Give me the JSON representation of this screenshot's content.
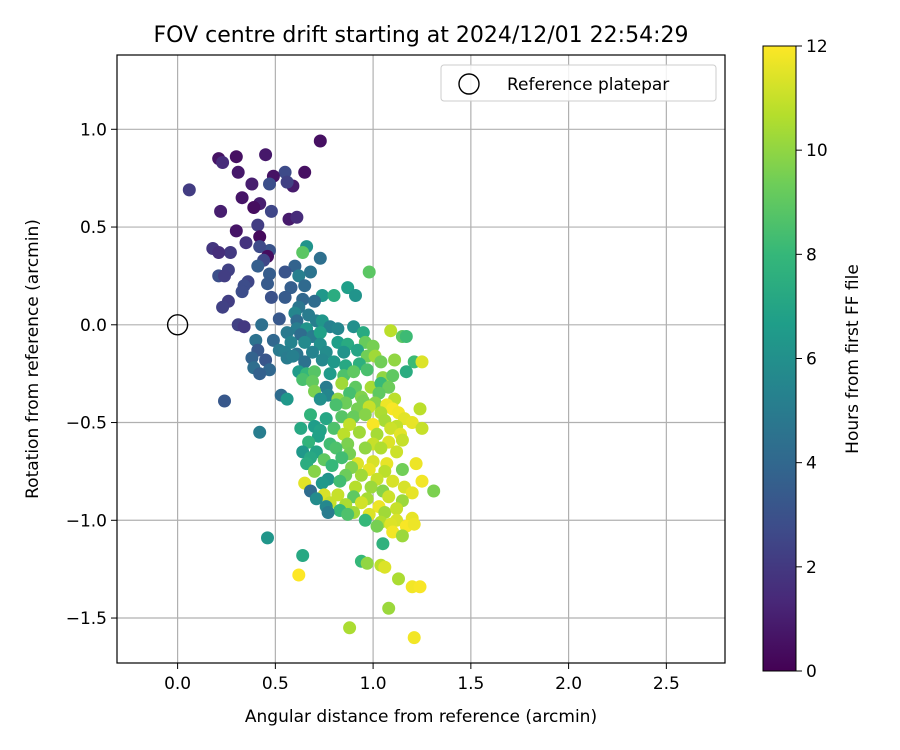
{
  "chart_data": {
    "type": "scatter",
    "title": "FOV centre drift starting at 2024/12/01 22:54:29",
    "xlabel": "Angular distance from reference (arcmin)",
    "ylabel": "Rotation from reference (arcmin)",
    "xlim": [
      -0.31,
      2.8
    ],
    "ylim": [
      -1.73,
      1.38
    ],
    "xticks": [
      0.0,
      0.5,
      1.0,
      1.5,
      2.0,
      2.5
    ],
    "xtick_labels": [
      "0.0",
      "0.5",
      "1.0",
      "1.5",
      "2.0",
      "2.5"
    ],
    "yticks": [
      -1.5,
      -1.0,
      -0.5,
      0.0,
      0.5,
      1.0
    ],
    "ytick_labels": [
      "−1.5",
      "−1.0",
      "−0.5",
      "0.0",
      "0.5",
      "1.0"
    ],
    "grid": true,
    "legend": {
      "placement": "top-right",
      "entries": [
        "Reference platepar"
      ]
    },
    "reference_point": {
      "x": 0.0,
      "y": 0.0
    },
    "colorbar": {
      "label": "Hours from first FF file",
      "range": [
        0,
        12
      ],
      "ticks": [
        0,
        2,
        4,
        6,
        8,
        10,
        12
      ],
      "colormap": "viridis"
    },
    "points": [
      [
        0.73,
        0.94,
        0.5
      ],
      [
        0.21,
        0.85,
        0.6
      ],
      [
        0.45,
        0.87,
        0.8
      ],
      [
        0.3,
        0.86,
        0.5
      ],
      [
        0.23,
        0.83,
        1.5
      ],
      [
        0.55,
        0.78,
        2.7
      ],
      [
        0.65,
        0.78,
        0.5
      ],
      [
        0.31,
        0.78,
        0.8
      ],
      [
        0.49,
        0.76,
        0.6
      ],
      [
        0.38,
        0.72,
        1.0
      ],
      [
        0.59,
        0.71,
        0.9
      ],
      [
        0.47,
        0.72,
        2.9
      ],
      [
        0.56,
        0.73,
        2.3
      ],
      [
        0.06,
        0.69,
        2.1
      ],
      [
        0.33,
        0.65,
        0.7
      ],
      [
        0.42,
        0.62,
        1.0
      ],
      [
        0.39,
        0.6,
        0.4
      ],
      [
        0.48,
        0.58,
        2.5
      ],
      [
        0.22,
        0.58,
        1.0
      ],
      [
        0.57,
        0.54,
        0.9
      ],
      [
        0.61,
        0.55,
        1.5
      ],
      [
        0.41,
        0.51,
        2.2
      ],
      [
        0.3,
        0.48,
        0.7
      ],
      [
        0.42,
        0.45,
        0.3
      ],
      [
        0.35,
        0.42,
        1.8
      ],
      [
        0.47,
        0.38,
        3.1
      ],
      [
        0.42,
        0.4,
        2.7
      ],
      [
        0.18,
        0.39,
        1.9
      ],
      [
        0.27,
        0.37,
        2.0
      ],
      [
        0.21,
        0.37,
        1.6
      ],
      [
        0.66,
        0.4,
        6.2
      ],
      [
        0.64,
        0.37,
        8.9
      ],
      [
        0.46,
        0.35,
        0.4
      ],
      [
        0.73,
        0.34,
        4.4
      ],
      [
        0.44,
        0.33,
        2.6
      ],
      [
        0.41,
        0.3,
        3.6
      ],
      [
        0.6,
        0.3,
        3.8
      ],
      [
        0.55,
        0.27,
        3.1
      ],
      [
        0.68,
        0.27,
        4.6
      ],
      [
        0.26,
        0.28,
        2.3
      ],
      [
        0.62,
        0.25,
        5.2
      ],
      [
        0.47,
        0.26,
        3.5
      ],
      [
        0.98,
        0.27,
        8.9
      ],
      [
        0.21,
        0.25,
        2.9
      ],
      [
        0.24,
        0.25,
        2.2
      ],
      [
        0.36,
        0.22,
        2.5
      ],
      [
        0.46,
        0.21,
        3.4
      ],
      [
        0.34,
        0.2,
        2.8
      ],
      [
        0.58,
        0.19,
        3.6
      ],
      [
        0.65,
        0.2,
        4.1
      ],
      [
        0.33,
        0.17,
        2.8
      ],
      [
        0.48,
        0.14,
        3.0
      ],
      [
        0.55,
        0.14,
        3.4
      ],
      [
        0.64,
        0.13,
        4.0
      ],
      [
        0.87,
        0.19,
        6.7
      ],
      [
        0.74,
        0.15,
        6.4
      ],
      [
        0.91,
        0.15,
        6.2
      ],
      [
        0.8,
        0.15,
        7.4
      ],
      [
        0.26,
        0.12,
        2.2
      ],
      [
        0.7,
        0.12,
        4.2
      ],
      [
        0.23,
        0.09,
        2.3
      ],
      [
        0.62,
        0.09,
        4.7
      ],
      [
        0.67,
        0.05,
        5.0
      ],
      [
        0.6,
        0.06,
        5.5
      ],
      [
        0.61,
        0.02,
        4.2
      ],
      [
        0.71,
        0.02,
        5.2
      ],
      [
        0.52,
        0.03,
        3.3
      ],
      [
        0.74,
        0.02,
        6.3
      ],
      [
        0.31,
        0.0,
        2.3
      ],
      [
        0.34,
        -0.01,
        2.0
      ],
      [
        0.43,
        0.0,
        4.4
      ],
      [
        0.61,
        -0.02,
        5.1
      ],
      [
        0.66,
        -0.02,
        6.2
      ],
      [
        0.78,
        -0.01,
        5.3
      ],
      [
        0.56,
        -0.04,
        4.9
      ],
      [
        0.63,
        -0.05,
        4.2
      ],
      [
        0.69,
        -0.06,
        5.0
      ],
      [
        0.73,
        -0.04,
        6.8
      ],
      [
        0.82,
        -0.02,
        5.5
      ],
      [
        0.9,
        -0.01,
        6.0
      ],
      [
        0.95,
        -0.04,
        7.3
      ],
      [
        1.09,
        -0.03,
        10.8
      ],
      [
        1.15,
        -0.06,
        8.9
      ],
      [
        1.17,
        -0.06,
        8.2
      ],
      [
        0.4,
        -0.08,
        4.5
      ],
      [
        0.49,
        -0.08,
        4.0
      ],
      [
        0.58,
        -0.09,
        5.4
      ],
      [
        0.65,
        -0.09,
        5.7
      ],
      [
        0.73,
        -0.1,
        6.0
      ],
      [
        0.82,
        -0.09,
        6.7
      ],
      [
        0.87,
        -0.1,
        7.3
      ],
      [
        0.96,
        -0.09,
        9.2
      ],
      [
        1.0,
        -0.11,
        9.5
      ],
      [
        0.41,
        -0.13,
        3.3
      ],
      [
        0.52,
        -0.13,
        4.9
      ],
      [
        0.55,
        -0.14,
        5.2
      ],
      [
        0.61,
        -0.15,
        4.6
      ],
      [
        0.69,
        -0.14,
        5.4
      ],
      [
        0.76,
        -0.14,
        5.8
      ],
      [
        0.85,
        -0.14,
        6.2
      ],
      [
        0.92,
        -0.13,
        7.0
      ],
      [
        0.97,
        -0.16,
        9.4
      ],
      [
        1.01,
        -0.16,
        10.3
      ],
      [
        0.38,
        -0.17,
        3.8
      ],
      [
        0.45,
        -0.18,
        3.2
      ],
      [
        0.56,
        -0.17,
        5.0
      ],
      [
        0.59,
        -0.16,
        5.2
      ],
      [
        0.65,
        -0.19,
        4.5
      ],
      [
        0.74,
        -0.18,
        5.6
      ],
      [
        0.8,
        -0.19,
        6.4
      ],
      [
        0.86,
        -0.21,
        7.2
      ],
      [
        0.93,
        -0.2,
        7.6
      ],
      [
        1.04,
        -0.19,
        9.4
      ],
      [
        1.11,
        -0.18,
        10.0
      ],
      [
        1.21,
        -0.19,
        8.2
      ],
      [
        1.25,
        -0.19,
        11.4
      ],
      [
        0.39,
        -0.22,
        4.3
      ],
      [
        0.47,
        -0.23,
        4.0
      ],
      [
        0.62,
        -0.24,
        6.5
      ],
      [
        0.66,
        -0.25,
        8.0
      ],
      [
        0.7,
        -0.24,
        8.8
      ],
      [
        0.78,
        -0.25,
        6.5
      ],
      [
        0.85,
        -0.26,
        8.6
      ],
      [
        0.9,
        -0.24,
        9.0
      ],
      [
        0.97,
        -0.23,
        8.5
      ],
      [
        1.05,
        -0.27,
        10.0
      ],
      [
        1.1,
        -0.26,
        9.0
      ],
      [
        1.17,
        -0.24,
        7.4
      ],
      [
        0.42,
        -0.25,
        3.7
      ],
      [
        0.64,
        -0.28,
        8.5
      ],
      [
        0.69,
        -0.29,
        9.1
      ],
      [
        0.76,
        -0.32,
        5.0
      ],
      [
        0.84,
        -0.3,
        10.3
      ],
      [
        0.91,
        -0.32,
        9.0
      ],
      [
        0.99,
        -0.32,
        10.4
      ],
      [
        1.04,
        -0.3,
        8.1
      ],
      [
        1.08,
        -0.32,
        9.3
      ],
      [
        0.7,
        -0.34,
        9.6
      ],
      [
        0.77,
        -0.36,
        5.5
      ],
      [
        0.88,
        -0.35,
        8.4
      ],
      [
        0.94,
        -0.37,
        9.7
      ],
      [
        1.03,
        -0.35,
        9.0
      ],
      [
        1.11,
        -0.38,
        10.8
      ],
      [
        0.53,
        -0.36,
        4.2
      ],
      [
        0.56,
        -0.38,
        6.4
      ],
      [
        0.73,
        -0.38,
        6.0
      ],
      [
        0.82,
        -0.38,
        10.0
      ],
      [
        0.86,
        -0.4,
        9.3
      ],
      [
        0.95,
        -0.39,
        9.5
      ],
      [
        1.01,
        -0.4,
        9.8
      ],
      [
        1.07,
        -0.41,
        11.7
      ],
      [
        1.1,
        -0.43,
        11.9
      ],
      [
        0.24,
        -0.39,
        3.3
      ],
      [
        0.81,
        -0.41,
        8.5
      ],
      [
        0.92,
        -0.43,
        9.5
      ],
      [
        0.98,
        -0.42,
        11.0
      ],
      [
        1.04,
        -0.45,
        10.5
      ],
      [
        1.13,
        -0.45,
        11.8
      ],
      [
        1.16,
        -0.48,
        11.5
      ],
      [
        1.24,
        -0.43,
        10.8
      ],
      [
        0.68,
        -0.46,
        7.8
      ],
      [
        0.76,
        -0.48,
        7.1
      ],
      [
        0.84,
        -0.47,
        8.8
      ],
      [
        0.9,
        -0.47,
        9.2
      ],
      [
        0.96,
        -0.46,
        9.8
      ],
      [
        1.06,
        -0.49,
        10.4
      ],
      [
        1.12,
        -0.52,
        10.9
      ],
      [
        1.2,
        -0.5,
        11.6
      ],
      [
        0.63,
        -0.53,
        7.2
      ],
      [
        0.7,
        -0.52,
        6.6
      ],
      [
        0.73,
        -0.54,
        6.9
      ],
      [
        0.8,
        -0.53,
        8.6
      ],
      [
        0.88,
        -0.51,
        10.9
      ],
      [
        1.0,
        -0.51,
        11.9
      ],
      [
        1.09,
        -0.53,
        11.1
      ],
      [
        1.25,
        -0.53,
        11.0
      ],
      [
        0.42,
        -0.55,
        5.1
      ],
      [
        0.72,
        -0.57,
        6.8
      ],
      [
        0.85,
        -0.56,
        10.8
      ],
      [
        0.93,
        -0.55,
        10.3
      ],
      [
        1.02,
        -0.56,
        10.4
      ],
      [
        1.14,
        -0.56,
        11.5
      ],
      [
        0.67,
        -0.6,
        7.8
      ],
      [
        0.78,
        -0.61,
        8.3
      ],
      [
        0.87,
        -0.61,
        9.6
      ],
      [
        1.0,
        -0.61,
        11.0
      ],
      [
        1.08,
        -0.6,
        11.4
      ],
      [
        1.15,
        -0.59,
        11.0
      ],
      [
        0.64,
        -0.65,
        6.4
      ],
      [
        0.71,
        -0.65,
        7.0
      ],
      [
        0.81,
        -0.63,
        8.6
      ],
      [
        0.88,
        -0.66,
        9.5
      ],
      [
        0.96,
        -0.63,
        10.0
      ],
      [
        1.04,
        -0.63,
        10.6
      ],
      [
        1.12,
        -0.65,
        11.1
      ],
      [
        0.68,
        -0.68,
        7.2
      ],
      [
        0.75,
        -0.69,
        9.0
      ],
      [
        0.84,
        -0.68,
        8.3
      ],
      [
        0.92,
        -0.71,
        11.4
      ],
      [
        1.0,
        -0.7,
        11.3
      ],
      [
        1.07,
        -0.71,
        11.6
      ],
      [
        0.66,
        -0.71,
        7.4
      ],
      [
        0.79,
        -0.72,
        8.0
      ],
      [
        0.89,
        -0.73,
        9.7
      ],
      [
        0.98,
        -0.74,
        11.6
      ],
      [
        1.06,
        -0.75,
        10.8
      ],
      [
        1.15,
        -0.74,
        9.4
      ],
      [
        1.22,
        -0.71,
        11.7
      ],
      [
        0.7,
        -0.75,
        9.8
      ],
      [
        0.77,
        -0.79,
        6.2
      ],
      [
        0.86,
        -0.77,
        9.3
      ],
      [
        0.94,
        -0.77,
        10.3
      ],
      [
        1.02,
        -0.79,
        11.0
      ],
      [
        1.1,
        -0.8,
        11.3
      ],
      [
        0.65,
        -0.81,
        11.5
      ],
      [
        0.74,
        -0.81,
        6.4
      ],
      [
        0.83,
        -0.8,
        8.3
      ],
      [
        0.91,
        -0.83,
        10.7
      ],
      [
        0.99,
        -0.83,
        10.2
      ],
      [
        1.05,
        -0.85,
        9.8
      ],
      [
        1.16,
        -0.83,
        11.3
      ],
      [
        1.25,
        -0.8,
        11.8
      ],
      [
        1.31,
        -0.85,
        9.6
      ],
      [
        0.68,
        -0.85,
        4.2
      ],
      [
        0.75,
        -0.87,
        11.3
      ],
      [
        0.82,
        -0.87,
        11.0
      ],
      [
        0.9,
        -0.88,
        9.0
      ],
      [
        0.97,
        -0.89,
        10.4
      ],
      [
        1.08,
        -0.88,
        11.1
      ],
      [
        1.2,
        -0.86,
        11.6
      ],
      [
        0.71,
        -0.89,
        5.8
      ],
      [
        0.78,
        -0.91,
        11.0
      ],
      [
        0.86,
        -0.92,
        10.5
      ],
      [
        0.94,
        -0.91,
        11.2
      ],
      [
        1.03,
        -0.93,
        11.7
      ],
      [
        1.15,
        -0.9,
        10.2
      ],
      [
        0.76,
        -0.93,
        5.6
      ],
      [
        0.83,
        -0.95,
        8.0
      ],
      [
        0.9,
        -0.96,
        10.3
      ],
      [
        0.98,
        -0.97,
        11.4
      ],
      [
        1.06,
        -0.96,
        10.3
      ],
      [
        1.12,
        -0.94,
        11.0
      ],
      [
        0.77,
        -0.96,
        5.0
      ],
      [
        0.87,
        -0.97,
        8.6
      ],
      [
        0.96,
        -1.0,
        8.0
      ],
      [
        1.04,
        -1.01,
        10.6
      ],
      [
        1.12,
        -1.0,
        11.3
      ],
      [
        1.2,
        -0.99,
        11.6
      ],
      [
        1.02,
        -1.03,
        9.5
      ],
      [
        1.09,
        -1.02,
        11.4
      ],
      [
        1.17,
        -1.03,
        11.9
      ],
      [
        1.21,
        -1.02,
        11.7
      ],
      [
        1.1,
        -1.06,
        11.8
      ],
      [
        1.15,
        -1.08,
        10.2
      ],
      [
        1.05,
        -1.12,
        7.7
      ],
      [
        0.46,
        -1.09,
        6.3
      ],
      [
        0.64,
        -1.18,
        7.2
      ],
      [
        0.94,
        -1.21,
        8.0
      ],
      [
        0.97,
        -1.22,
        10.0
      ],
      [
        1.04,
        -1.23,
        10.8
      ],
      [
        1.06,
        -1.24,
        11.4
      ],
      [
        0.62,
        -1.28,
        12.0
      ],
      [
        1.13,
        -1.3,
        10.5
      ],
      [
        1.2,
        -1.34,
        11.8
      ],
      [
        1.24,
        -1.34,
        11.9
      ],
      [
        1.08,
        -1.45,
        10.2
      ],
      [
        0.88,
        -1.55,
        10.5
      ],
      [
        1.21,
        -1.6,
        11.8
      ]
    ]
  }
}
